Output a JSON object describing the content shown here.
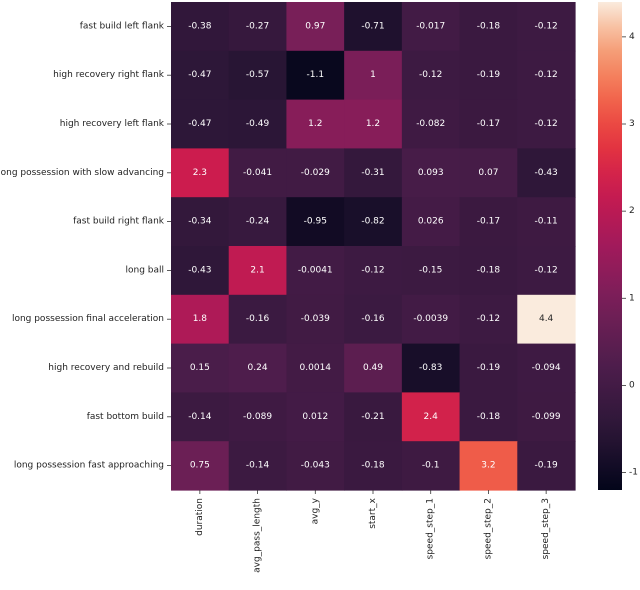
{
  "chart_data": {
    "type": "heatmap",
    "title": "",
    "xlabel": "",
    "ylabel": "",
    "rows": [
      "fast build left flank",
      "high recovery right flank",
      "high recovery left flank",
      "long possession with slow advancing",
      "fast build right flank",
      "long ball",
      "long possession final acceleration",
      "high recovery and rebuild",
      "fast bottom build",
      "long possession fast approaching"
    ],
    "columns": [
      "duration",
      "avg_pass_length",
      "avg_y",
      "start_x",
      "speed_step_1",
      "speed_step_2",
      "speed_step_3"
    ],
    "values": [
      [
        -0.38,
        -0.27,
        0.97,
        -0.71,
        -0.017,
        -0.18,
        -0.12
      ],
      [
        -0.47,
        -0.57,
        -1.1,
        1,
        -0.12,
        -0.19,
        -0.12
      ],
      [
        -0.47,
        -0.49,
        1.2,
        1.2,
        -0.082,
        -0.17,
        -0.12
      ],
      [
        2.3,
        -0.041,
        -0.029,
        -0.31,
        0.093,
        0.07,
        -0.43
      ],
      [
        -0.34,
        -0.24,
        -0.95,
        -0.82,
        0.026,
        -0.17,
        -0.11
      ],
      [
        -0.43,
        2.1,
        -0.0041,
        -0.12,
        -0.15,
        -0.18,
        -0.12
      ],
      [
        1.8,
        -0.16,
        -0.039,
        -0.16,
        -0.0039,
        -0.12,
        4.4
      ],
      [
        0.15,
        0.24,
        0.0014,
        0.49,
        -0.83,
        -0.19,
        -0.094
      ],
      [
        -0.14,
        -0.089,
        0.012,
        -0.21,
        2.4,
        -0.18,
        -0.099
      ],
      [
        0.75,
        -0.14,
        -0.043,
        -0.18,
        -0.1,
        3.2,
        -0.19
      ]
    ],
    "cell_labels": [
      [
        "-0.38",
        "-0.27",
        "0.97",
        "-0.71",
        "-0.017",
        "-0.18",
        "-0.12"
      ],
      [
        "-0.47",
        "-0.57",
        "-1.1",
        "1",
        "-0.12",
        "-0.19",
        "-0.12"
      ],
      [
        "-0.47",
        "-0.49",
        "1.2",
        "1.2",
        "-0.082",
        "-0.17",
        "-0.12"
      ],
      [
        "2.3",
        "-0.041",
        "-0.029",
        "-0.31",
        "0.093",
        "0.07",
        "-0.43"
      ],
      [
        "-0.34",
        "-0.24",
        "-0.95",
        "-0.82",
        "0.026",
        "-0.17",
        "-0.11"
      ],
      [
        "-0.43",
        "2.1",
        "-0.0041",
        "-0.12",
        "-0.15",
        "-0.18",
        "-0.12"
      ],
      [
        "1.8",
        "-0.16",
        "-0.039",
        "-0.16",
        "-0.0039",
        "-0.12",
        "4.4"
      ],
      [
        "0.15",
        "0.24",
        "0.0014",
        "0.49",
        "-0.83",
        "-0.19",
        "-0.094"
      ],
      [
        "-0.14",
        "-0.089",
        "0.012",
        "-0.21",
        "2.4",
        "-0.18",
        "-0.099"
      ],
      [
        "0.75",
        "-0.14",
        "-0.043",
        "-0.18",
        "-0.1",
        "3.2",
        "-0.19"
      ]
    ],
    "colorbar": {
      "vmin": -1.2,
      "vmax": 4.4,
      "ticks": [
        -1,
        0,
        1,
        2,
        3,
        4
      ],
      "tick_labels": [
        "-1",
        "0",
        "1",
        "2",
        "3",
        "4"
      ],
      "colormap": "rocket",
      "placement": "right"
    }
  }
}
